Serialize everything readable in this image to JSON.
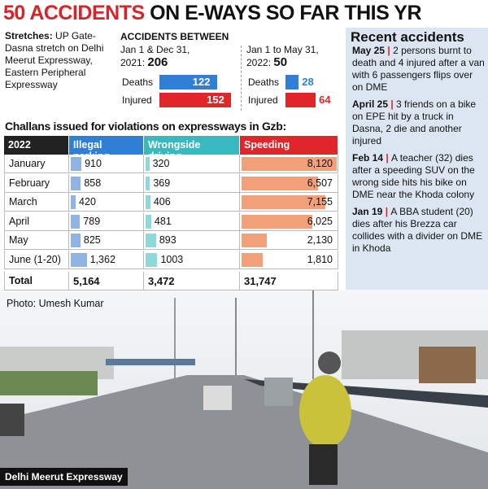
{
  "title": {
    "highlight": "50 ACCIDENTS",
    "rest": "ON E-WAYS SO FAR THIS YR"
  },
  "stretches": {
    "label": "Stretches:",
    "text": "UP Gate-Dasna stretch on Delhi Meerut Expressway, Eastern Peripheral Expressway"
  },
  "accidents": {
    "heading": "ACCIDENTS BETWEEN",
    "deaths_label": "Deaths",
    "injured_label": "Injured",
    "periods": [
      {
        "label": "Jan 1 & Dec 31, 2021:",
        "total": 206,
        "deaths": 122,
        "injured": 152
      },
      {
        "label": "Jan 1 to May 31, 2022:",
        "total": 50,
        "deaths": 28,
        "injured": 64
      }
    ]
  },
  "challans": {
    "title": "Challans issued for violations on expressways in Gzb:",
    "columns": [
      "2022",
      "Illegal parking",
      "Wrongside driving",
      "Speeding"
    ],
    "rows": [
      {
        "label": "January",
        "values": [
          910,
          320,
          8120
        ],
        "value_labels": [
          "910",
          "320",
          "8,120"
        ]
      },
      {
        "label": "February",
        "values": [
          858,
          369,
          6507
        ],
        "value_labels": [
          "858",
          "369",
          "6,507"
        ]
      },
      {
        "label": "March",
        "values": [
          420,
          406,
          7155
        ],
        "value_labels": [
          "420",
          "406",
          "7,155"
        ]
      },
      {
        "label": "April",
        "values": [
          789,
          481,
          6025
        ],
        "value_labels": [
          "789",
          "481",
          "6,025"
        ]
      },
      {
        "label": "May",
        "values": [
          825,
          893,
          2130
        ],
        "value_labels": [
          "825",
          "893",
          "2,130"
        ]
      },
      {
        "label": "June (1-20)",
        "values": [
          1362,
          1003,
          1810
        ],
        "value_labels": [
          "1,362",
          "1003",
          "1,810"
        ]
      }
    ],
    "total": {
      "label": "Total",
      "values": [
        5164,
        3472,
        31747
      ],
      "value_labels": [
        "5,164",
        "3,472",
        "31,747"
      ]
    }
  },
  "photo_credit": "Photo: Umesh Kumar",
  "recent": {
    "title": "Recent accidents",
    "items": [
      {
        "date": "May 25",
        "text": "2 persons burnt to death and 4 injured after a van with 6 passengers flips over on DME"
      },
      {
        "date": "April 25",
        "text": "3 friends on a bike on EPE hit by a truck in Dasna, 2 die and another injured"
      },
      {
        "date": "Feb 14",
        "text": "A teacher (32) dies after a speeding SUV on the wrong side hits his bike on DME near the Khoda colony"
      },
      {
        "date": "Jan 19",
        "text": "A BBA student (20) dies after his Brezza car collides with a divider on DME in Khoda"
      }
    ]
  },
  "caption": "Delhi Meerut Expressway"
}
